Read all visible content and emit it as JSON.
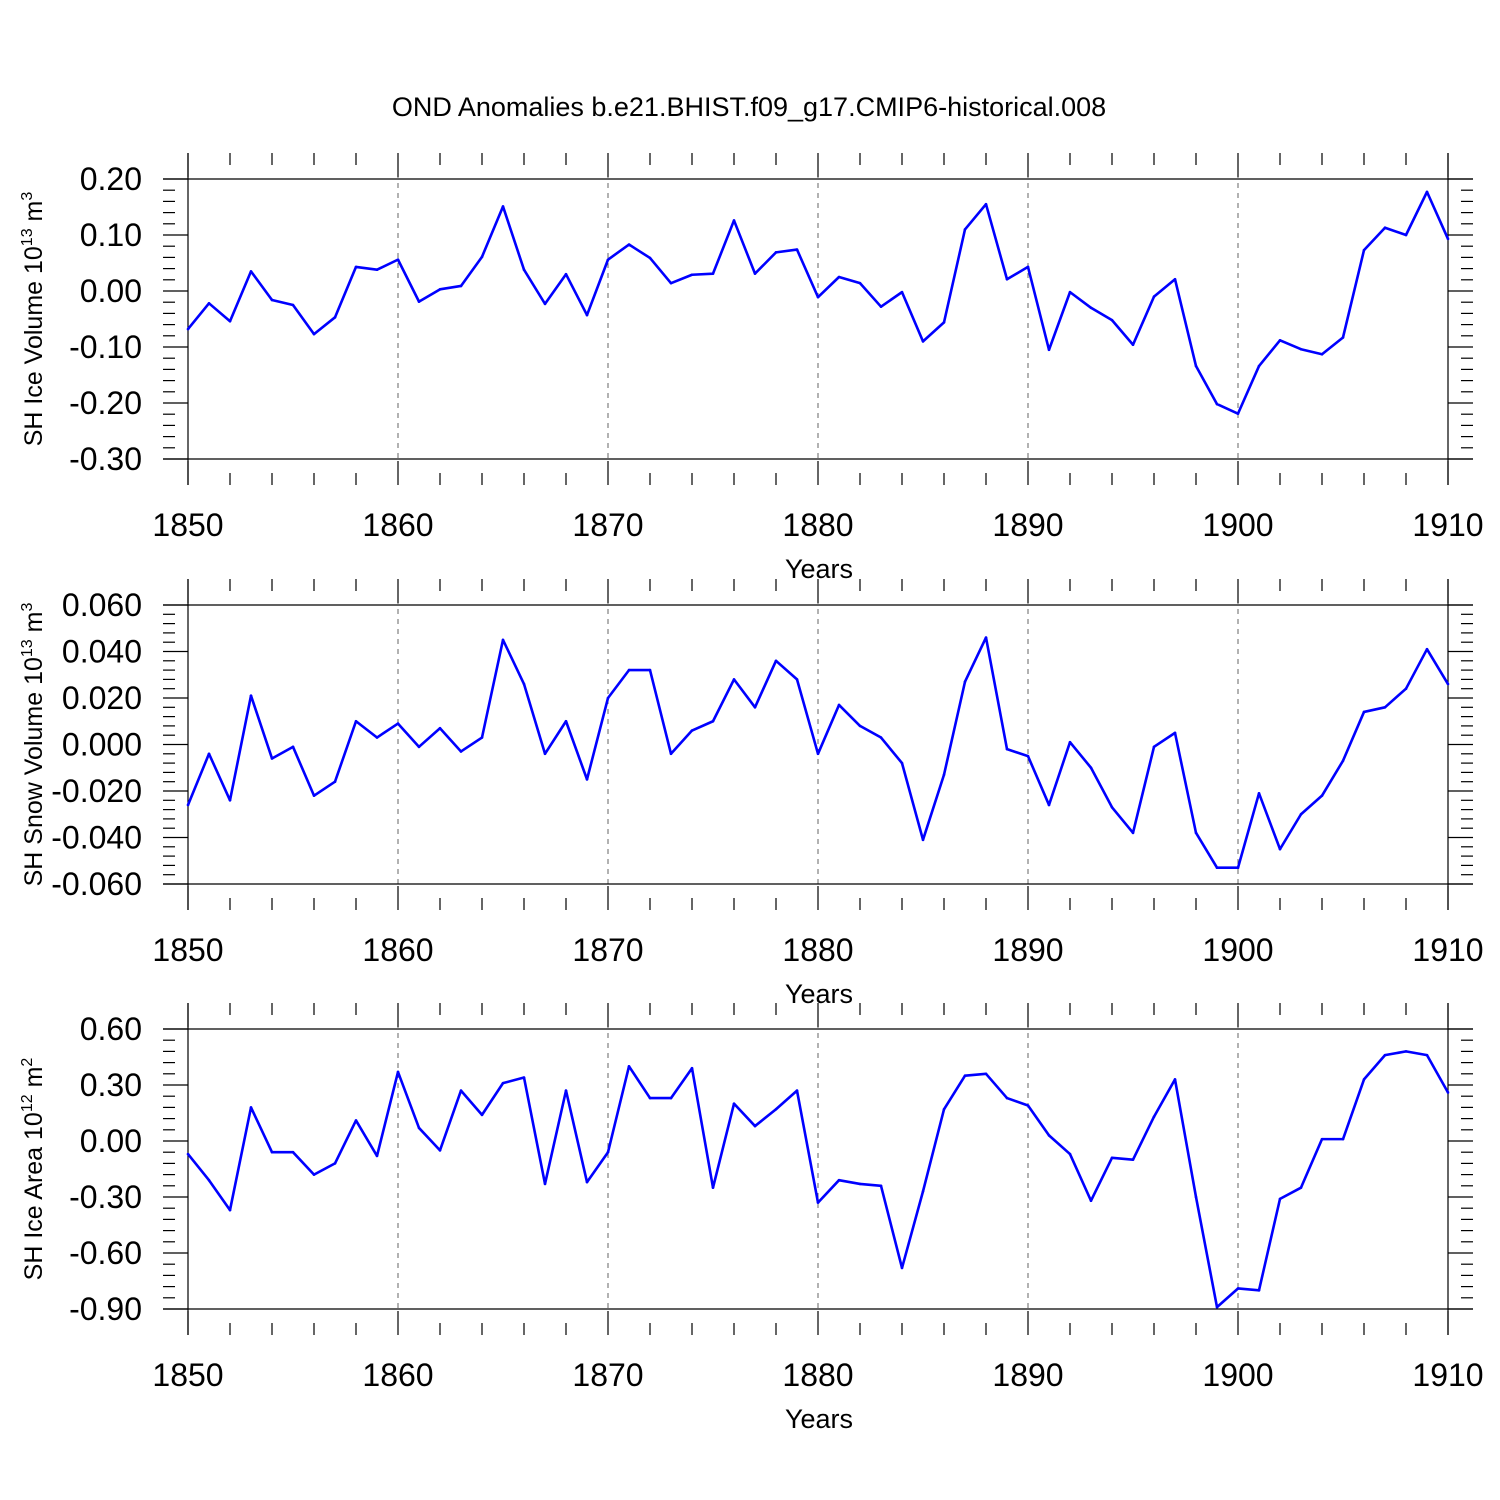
{
  "title": "OND Anomalies b.e21.BHIST.f09_g17.CMIP6-historical.008",
  "colors": {
    "series": "#0000ff"
  },
  "chart_data": [
    {
      "type": "line",
      "ylabel": "SH Ice Volume 10",
      "ylabel_exp": "13",
      "ylabel_unit": " m",
      "ylabel_unit_exp": "3",
      "xlabel": "Years",
      "xlim": [
        1850,
        1910
      ],
      "ylim": [
        -0.3,
        0.2
      ],
      "xticks": [
        "1850",
        "1860",
        "1870",
        "1880",
        "1890",
        "1900",
        "1910"
      ],
      "yticks": [
        "0.20",
        "0.10",
        "0.00",
        "-0.10",
        "-0.20",
        "-0.30"
      ],
      "ytick_values": [
        0.2,
        0.1,
        0.0,
        -0.1,
        -0.2,
        -0.3
      ],
      "x_start": 1850,
      "values": [
        -0.068,
        -0.022,
        -0.054,
        0.035,
        -0.016,
        -0.025,
        -0.077,
        -0.047,
        0.043,
        0.038,
        0.056,
        -0.019,
        0.003,
        0.009,
        0.061,
        0.151,
        0.038,
        -0.023,
        0.03,
        -0.043,
        0.056,
        0.083,
        0.059,
        0.014,
        0.029,
        0.031,
        0.126,
        0.031,
        0.069,
        0.074,
        -0.011,
        0.025,
        0.014,
        -0.028,
        -0.002,
        -0.09,
        -0.056,
        0.11,
        0.155,
        0.021,
        0.043,
        -0.105,
        -0.002,
        -0.03,
        -0.052,
        -0.096,
        -0.01,
        0.021,
        -0.134,
        -0.202,
        -0.219,
        -0.134,
        -0.088,
        -0.104,
        -0.113,
        -0.083,
        0.073,
        0.113,
        0.1,
        0.177,
        0.093
      ]
    },
    {
      "type": "line",
      "ylabel": "SH Snow Volume 10",
      "ylabel_exp": "13",
      "ylabel_unit": " m",
      "ylabel_unit_exp": "3",
      "xlabel": "Years",
      "xlim": [
        1850,
        1910
      ],
      "ylim": [
        -0.06,
        0.06
      ],
      "xticks": [
        "1850",
        "1860",
        "1870",
        "1880",
        "1890",
        "1900",
        "1910"
      ],
      "yticks": [
        "0.060",
        "0.040",
        "0.020",
        "0.000",
        "-0.020",
        "-0.040",
        "-0.060"
      ],
      "ytick_values": [
        0.06,
        0.04,
        0.02,
        0.0,
        -0.02,
        -0.04,
        -0.06
      ],
      "x_start": 1850,
      "values": [
        -0.026,
        -0.004,
        -0.024,
        0.021,
        -0.006,
        -0.001,
        -0.022,
        -0.016,
        0.01,
        0.003,
        0.009,
        -0.001,
        0.007,
        -0.003,
        0.003,
        0.045,
        0.026,
        -0.004,
        0.01,
        -0.015,
        0.02,
        0.032,
        0.032,
        -0.004,
        0.006,
        0.01,
        0.028,
        0.016,
        0.036,
        0.028,
        -0.004,
        0.017,
        0.008,
        0.003,
        -0.008,
        -0.041,
        -0.013,
        0.027,
        0.046,
        -0.002,
        -0.005,
        -0.026,
        0.001,
        -0.01,
        -0.027,
        -0.038,
        -0.001,
        0.005,
        -0.038,
        -0.053,
        -0.053,
        -0.021,
        -0.045,
        -0.03,
        -0.022,
        -0.007,
        0.014,
        0.016,
        0.024,
        0.041,
        0.026
      ]
    },
    {
      "type": "line",
      "ylabel": "SH Ice Area 10",
      "ylabel_exp": "12",
      "ylabel_unit": " m",
      "ylabel_unit_exp": "2",
      "xlabel": "Years",
      "xlim": [
        1850,
        1910
      ],
      "ylim": [
        -0.9,
        0.6
      ],
      "xticks": [
        "1850",
        "1860",
        "1870",
        "1880",
        "1890",
        "1900",
        "1910"
      ],
      "yticks": [
        "0.60",
        "0.30",
        "0.00",
        "-0.30",
        "-0.60",
        "-0.90"
      ],
      "ytick_values": [
        0.6,
        0.3,
        0.0,
        -0.3,
        -0.6,
        -0.9
      ],
      "x_start": 1850,
      "values": [
        -0.07,
        -0.21,
        -0.37,
        0.18,
        -0.06,
        -0.06,
        -0.18,
        -0.12,
        0.11,
        -0.08,
        0.37,
        0.07,
        -0.05,
        0.27,
        0.14,
        0.31,
        0.34,
        -0.23,
        0.27,
        -0.22,
        -0.06,
        0.4,
        0.23,
        0.23,
        0.39,
        -0.25,
        0.2,
        0.08,
        0.17,
        0.27,
        -0.33,
        -0.21,
        -0.23,
        -0.24,
        -0.68,
        -0.27,
        0.17,
        0.35,
        0.36,
        0.23,
        0.19,
        0.03,
        -0.07,
        -0.32,
        -0.09,
        -0.1,
        0.13,
        0.33,
        -0.3,
        -0.89,
        -0.79,
        -0.8,
        -0.31,
        -0.25,
        0.01,
        0.01,
        0.33,
        0.46,
        0.48,
        0.46,
        0.26
      ]
    }
  ]
}
